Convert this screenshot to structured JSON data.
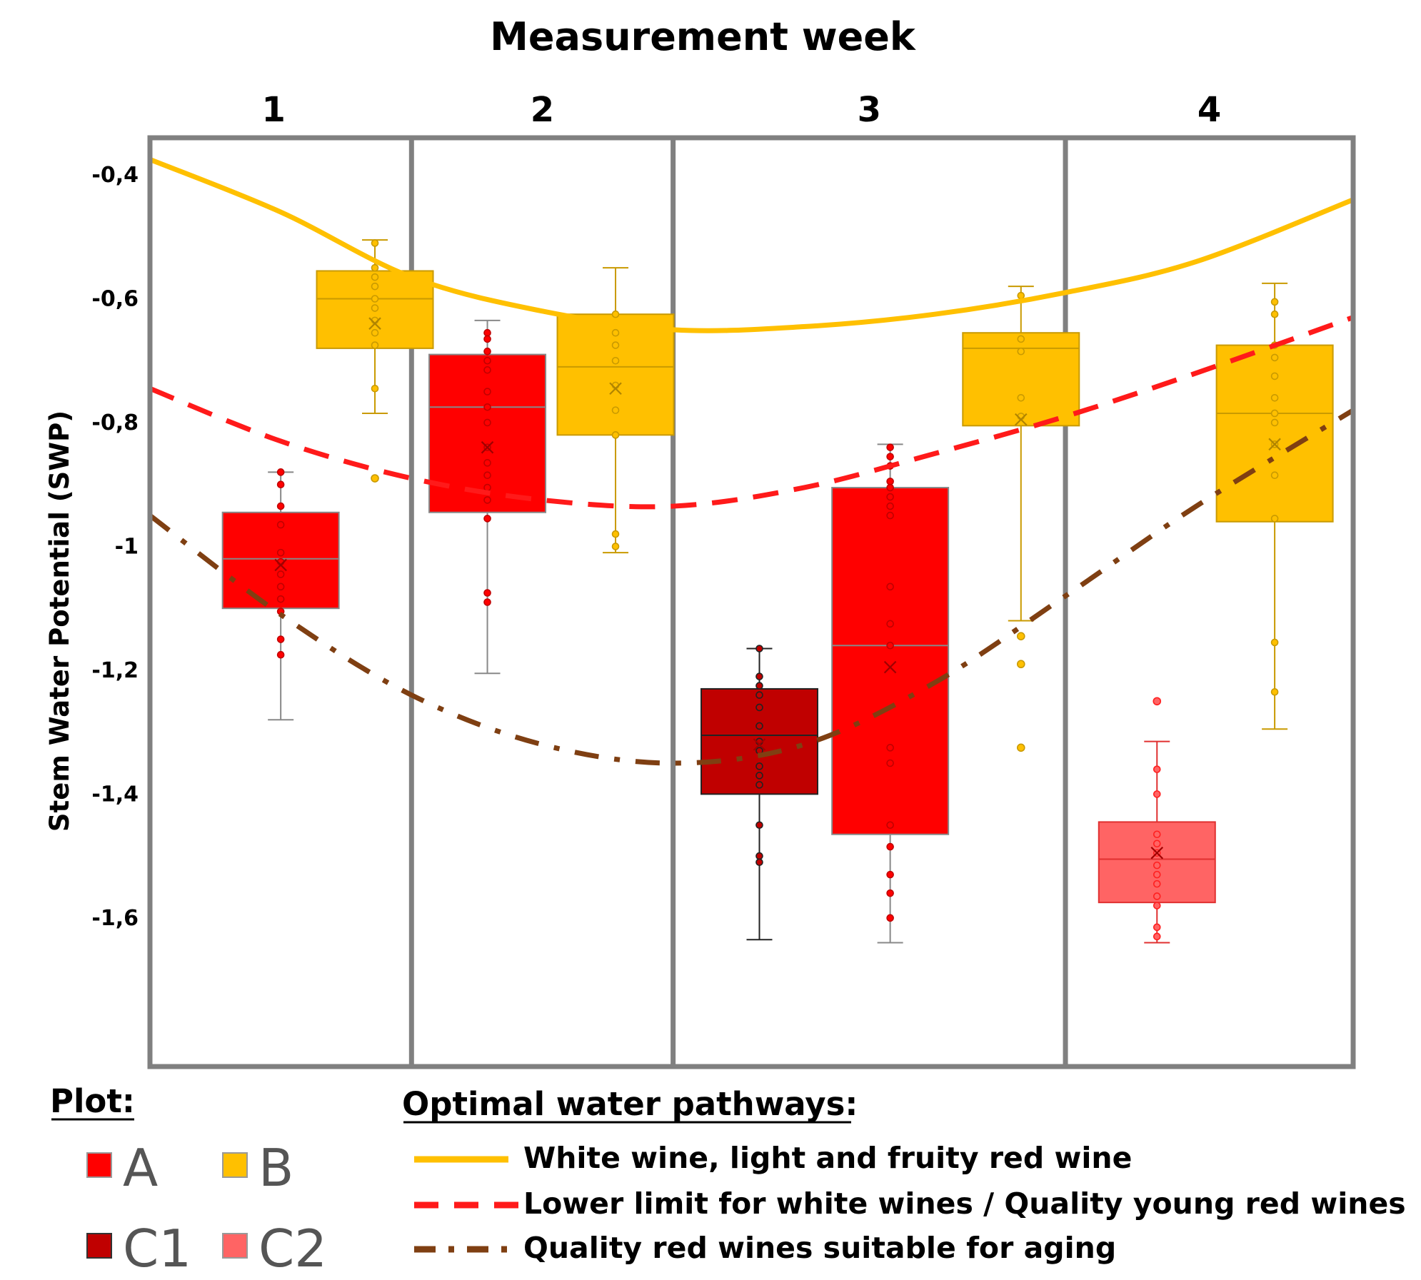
{
  "chart_data": {
    "type": "box",
    "title": "Measurement week",
    "ylabel": "Stem Water Potential (SWP)",
    "ylim": [
      -1.84,
      -0.34
    ],
    "y_ticks": [
      "-0,4",
      "-0,6",
      "-0,8",
      "-1",
      "-1,2",
      "-1,4",
      "-1,6"
    ],
    "y_tick_values": [
      -0.4,
      -0.6,
      -0.8,
      -1.0,
      -1.2,
      -1.4,
      -1.6
    ],
    "weeks": [
      "1",
      "2",
      "3",
      "4"
    ],
    "week_spans": [
      [
        0,
        1
      ],
      [
        1,
        2
      ],
      [
        2,
        3.5
      ],
      [
        3.5,
        4.6
      ]
    ],
    "x_range": [
      0,
      4.6
    ],
    "plots": [
      {
        "week": "1",
        "plot": "A",
        "x": 0.5,
        "width": 0.45,
        "min": -1.28,
        "q1": -1.1,
        "median": -1.02,
        "q3": -0.945,
        "max": -0.88,
        "mean": -1.03,
        "points": [
          -0.88,
          -0.9,
          -0.935,
          -0.965,
          -1.01,
          -1.025,
          -1.045,
          -1.065,
          -1.085,
          -1.105,
          -1.15,
          -1.175
        ],
        "outliers": []
      },
      {
        "week": "1",
        "plot": "B",
        "x": 0.86,
        "width": 0.45,
        "min": -0.785,
        "q1": -0.68,
        "median": -0.6,
        "q3": -0.555,
        "max": -0.505,
        "mean": -0.64,
        "points": [
          -0.51,
          -0.55,
          -0.565,
          -0.58,
          -0.6,
          -0.615,
          -0.635,
          -0.655,
          -0.675,
          -0.745
        ],
        "outliers": [
          -0.89
        ]
      },
      {
        "week": "2",
        "plot": "A",
        "x": 1.29,
        "width": 0.45,
        "min": -1.205,
        "q1": -0.945,
        "median": -0.775,
        "q3": -0.69,
        "max": -0.635,
        "mean": -0.84,
        "points": [
          -0.655,
          -0.665,
          -0.685,
          -0.7,
          -0.715,
          -0.75,
          -0.775,
          -0.8,
          -0.84,
          -0.865,
          -0.885,
          -0.905,
          -0.925,
          -0.955,
          -1.075,
          -1.09
        ],
        "outliers": []
      },
      {
        "week": "2",
        "plot": "B",
        "x": 1.78,
        "width": 0.45,
        "min": -1.01,
        "q1": -0.82,
        "median": -0.71,
        "q3": -0.625,
        "max": -0.55,
        "mean": -0.745,
        "points": [
          -0.625,
          -0.655,
          -0.675,
          -0.7,
          -0.74,
          -0.78,
          -0.82,
          -0.98,
          -1.0
        ],
        "outliers": []
      },
      {
        "week": "3",
        "plot": "C1",
        "x": 2.33,
        "width": 0.45,
        "min": -1.635,
        "q1": -1.4,
        "median": -1.305,
        "q3": -1.23,
        "max": -1.165,
        "mean": -1.32,
        "points": [
          -1.165,
          -1.21,
          -1.225,
          -1.24,
          -1.26,
          -1.29,
          -1.315,
          -1.33,
          -1.355,
          -1.37,
          -1.385,
          -1.45,
          -1.5,
          -1.51
        ],
        "outliers": []
      },
      {
        "week": "3",
        "plot": "A",
        "x": 2.83,
        "width": 0.45,
        "min": -1.64,
        "q1": -1.465,
        "median": -1.16,
        "q3": -0.905,
        "max": -0.835,
        "mean": -1.195,
        "points": [
          -0.84,
          -0.855,
          -0.87,
          -0.895,
          -0.905,
          -0.92,
          -0.935,
          -0.95,
          -1.065,
          -1.125,
          -1.16,
          -1.325,
          -1.35,
          -1.45,
          -1.485,
          -1.53,
          -1.56,
          -1.6
        ],
        "outliers": []
      },
      {
        "week": "3",
        "plot": "B",
        "x": 3.33,
        "width": 0.45,
        "min": -1.12,
        "q1": -0.805,
        "median": -0.68,
        "q3": -0.655,
        "max": -0.58,
        "mean": -0.795,
        "points": [
          -0.595,
          -0.665,
          -0.685,
          -0.76,
          -0.79
        ],
        "outliers": [
          -1.145,
          -1.19,
          -1.325
        ]
      },
      {
        "week": "4",
        "plot": "C2",
        "x": 3.85,
        "width": 0.45,
        "min": -1.64,
        "q1": -1.575,
        "median": -1.505,
        "q3": -1.445,
        "max": -1.315,
        "mean": -1.495,
        "points": [
          -1.36,
          -1.4,
          -1.465,
          -1.48,
          -1.495,
          -1.515,
          -1.53,
          -1.545,
          -1.565,
          -1.58,
          -1.615,
          -1.63
        ],
        "outliers": [
          -1.25
        ]
      },
      {
        "week": "4",
        "plot": "B",
        "x": 4.3,
        "width": 0.45,
        "min": -1.295,
        "q1": -0.96,
        "median": -0.785,
        "q3": -0.675,
        "max": -0.575,
        "mean": -0.835,
        "points": [
          -0.605,
          -0.625,
          -0.675,
          -0.695,
          -0.725,
          -0.76,
          -0.785,
          -0.8,
          -0.835,
          -0.885,
          -0.955,
          -1.155,
          -1.235
        ],
        "outliers": []
      }
    ],
    "pathways": [
      {
        "name": "White wine, light and fruity red wine",
        "style": "solid",
        "x": [
          0,
          0.5,
          1,
          1.5,
          2,
          2.5,
          3,
          3.5,
          4,
          4.6
        ],
        "y": [
          -0.375,
          -0.46,
          -0.565,
          -0.62,
          -0.65,
          -0.645,
          -0.625,
          -0.59,
          -0.54,
          -0.44
        ]
      },
      {
        "name": "Lower limit for white wines / Quality young red wines",
        "style": "dashed",
        "x": [
          0,
          0.5,
          1,
          1.5,
          2,
          2.5,
          3,
          3.5,
          4,
          4.6
        ],
        "y": [
          -0.745,
          -0.83,
          -0.89,
          -0.925,
          -0.935,
          -0.905,
          -0.85,
          -0.79,
          -0.72,
          -0.63
        ]
      },
      {
        "name": "Quality red wines suitable for aging",
        "style": "dashdot",
        "x": [
          0,
          0.5,
          1,
          1.5,
          2,
          2.5,
          3,
          3.5,
          4,
          4.6
        ],
        "y": [
          -0.95,
          -1.11,
          -1.24,
          -1.32,
          -1.35,
          -1.32,
          -1.22,
          -1.08,
          -0.935,
          -0.78
        ]
      }
    ],
    "legend_plot": {
      "title": "Plot:",
      "items": [
        "A",
        "B",
        "C1",
        "C2"
      ]
    },
    "legend_pathways": {
      "title": "Optimal water pathways:"
    }
  },
  "colors": {
    "A": "#ff0000",
    "B": "#ffc000",
    "C1": "#c00000",
    "C2": "#ff6464",
    "solid": "#ffc000",
    "dashed": "#ff1a1a",
    "dashdot": "#7f3f12",
    "frame": "#808080"
  }
}
